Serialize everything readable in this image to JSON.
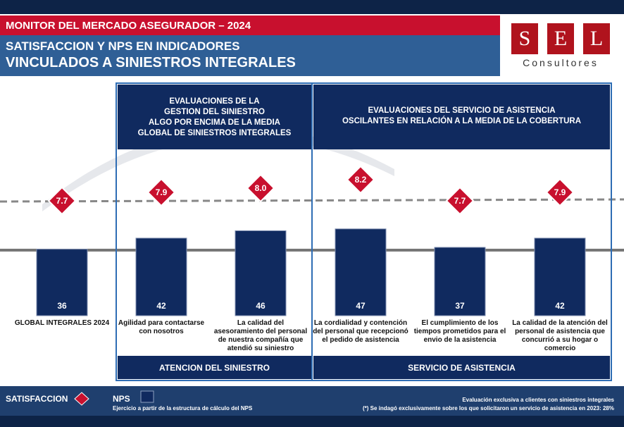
{
  "header": {
    "title": "MONITOR DEL MERCADO ASEGURADOR – 2024",
    "subtitle_1": "SATISFACCION Y NPS EN INDICADORES",
    "subtitle_2": "VINCULADOS A SINIESTROS INTEGRALES"
  },
  "logo": {
    "letters": [
      "S",
      "E",
      "L"
    ],
    "text": "Consultores"
  },
  "panels": [
    {
      "title": "EVALUACIONES DE LA\nGESTION DEL SINIESTRO\nALGO POR ENCIMA DE LA MEDIA\nGLOBAL DE SINIESTROS INTEGRALES",
      "label": "ATENCION DEL SINIESTRO"
    },
    {
      "title": "EVALUACIONES DEL SERVICIO DE ASISTENCIA\nOSCILANTES EN RELACIÓN A LA MEDIA DE LA COBERTURA",
      "label": "SERVICIO DE ASISTENCIA"
    }
  ],
  "footer": {
    "note_left": "Ejercicio a partir de la  estructura de cálculo del NPS",
    "note_right_1": "Evaluación exclusiva a clientes con siniestros integrales",
    "note_right_2": "(*) Se indagó exclusivamente sobre los que solicitaron un servicio de asistencia en 2023: 28%"
  },
  "chart_data": {
    "type": "bar",
    "categories": [
      "GLOBAL INTEGRALES 2024",
      "Agilidad para contactarse\ncon nosotros",
      "La calidad del\nasesoramiento del personal\nde nuestra compañía que\natendió su siniestro",
      "La cordialidad y contención\ndel personal que recepcionó\nel pedido de asistencia",
      "El cumplimiento de los\ntiempos prometidos para el\nenvio de la asistencia",
      "La calidad de la atención del\npersonal de asistencia que\nconcurrió a su hogar o\ncomercio"
    ],
    "series": [
      {
        "name": "NPS",
        "color": "#102a5f",
        "values": [
          36,
          42,
          46,
          47,
          37,
          42
        ]
      },
      {
        "name": "SATISFACCION",
        "color": "#c8102e",
        "marker": "diamond",
        "values": [
          7.7,
          7.9,
          8.0,
          8.2,
          7.7,
          7.9
        ],
        "value_labels": [
          "7.7",
          "7.9",
          "8.0",
          "8.2",
          "7.7",
          "7.9"
        ]
      }
    ]
  }
}
